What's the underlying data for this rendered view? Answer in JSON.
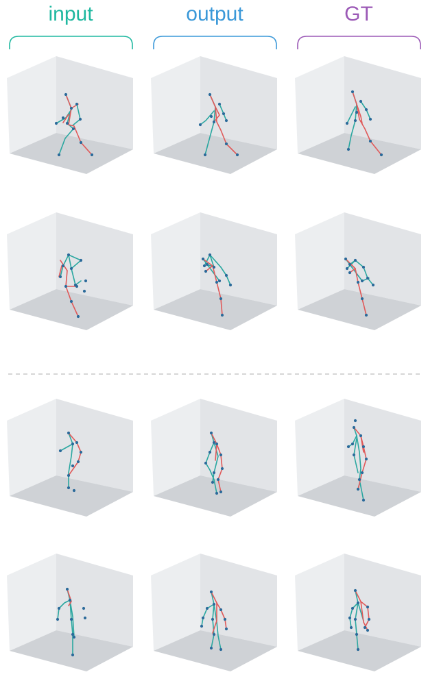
{
  "colors": {
    "input": "#1fb8a0",
    "output": "#3a98d8",
    "gt": "#9b59b6",
    "left_limb": "#2aa7a0",
    "right_limb": "#e05a5a",
    "joint": "#2b6a9a",
    "box_back": "#e2e4e7",
    "box_side": "#eceef0",
    "box_floor": "#cfd2d6",
    "separator": "#c8c8c8"
  },
  "headers": [
    {
      "key": "input",
      "label": "input"
    },
    {
      "key": "output",
      "label": "output"
    },
    {
      "key": "gt",
      "label": "GT"
    }
  ],
  "rows": [
    {
      "group": "top",
      "cells": [
        {
          "column": "input",
          "pose": "walk_a_noisy"
        },
        {
          "column": "output",
          "pose": "walk_a"
        },
        {
          "column": "gt",
          "pose": "walk_a_gt"
        }
      ]
    },
    {
      "group": "top",
      "cells": [
        {
          "column": "input",
          "pose": "crouch_noisy"
        },
        {
          "column": "output",
          "pose": "crouch"
        },
        {
          "column": "gt",
          "pose": "crouch_gt"
        }
      ]
    },
    {
      "group": "bottom",
      "cells": [
        {
          "column": "input",
          "pose": "stand_sparse"
        },
        {
          "column": "output",
          "pose": "stand"
        },
        {
          "column": "gt",
          "pose": "stand_gt"
        }
      ]
    },
    {
      "group": "bottom",
      "cells": [
        {
          "column": "input",
          "pose": "reach_sparse"
        },
        {
          "column": "output",
          "pose": "reach"
        },
        {
          "column": "gt",
          "pose": "reach_gt"
        }
      ]
    }
  ]
}
